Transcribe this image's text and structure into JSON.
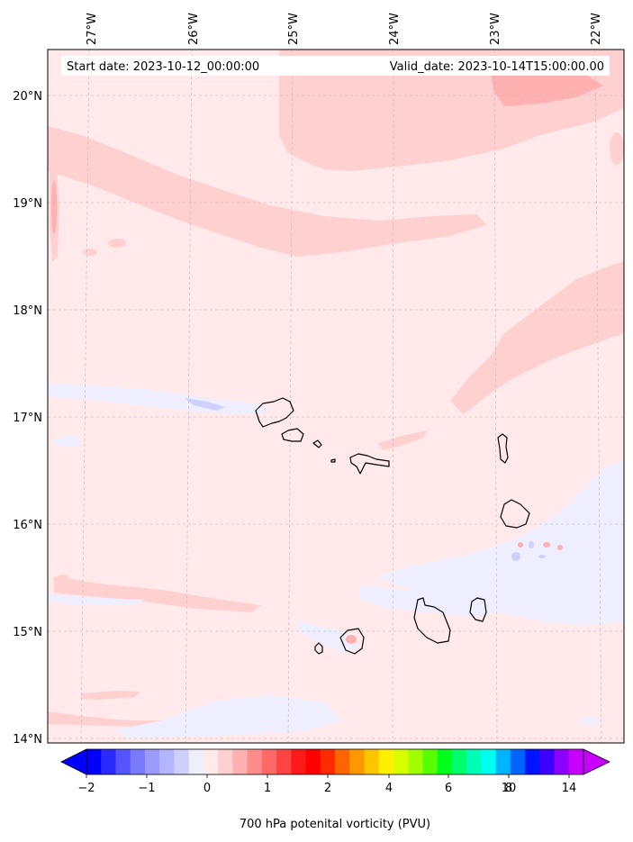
{
  "header": {
    "start_label": "Start date: 2023-10-12_00:00:00",
    "valid_label": "Valid_date: 2023-10-14T15:00:00.00"
  },
  "map": {
    "lon_labels": [
      "27°W",
      "26°W",
      "25°W",
      "24°W",
      "23°W",
      "22°W"
    ],
    "lat_labels": [
      "20°N",
      "19°N",
      "18°N",
      "17°N",
      "16°N",
      "15°N",
      "14°N"
    ],
    "lon_values": [
      -27,
      -26,
      -25,
      -24,
      -23,
      -22
    ],
    "lat_values": [
      20,
      19,
      18,
      17,
      16,
      15,
      14
    ],
    "lon_range": [
      -27.4,
      -21.9
    ],
    "lat_range": [
      13.95,
      20.42
    ],
    "background_color": "#ffe9ea",
    "land_outline_color": "#000000",
    "gridlines": true
  },
  "colorbar": {
    "label": "700 hPa potenital vorticity (PVU)",
    "tick_labels": [
      "−2",
      "−1",
      "0",
      "1",
      "2",
      "4",
      "6",
      "8",
      "10",
      "14"
    ],
    "colors": [
      "#0000ff",
      "#2a2aff",
      "#5555ff",
      "#7a7aff",
      "#9a9aff",
      "#b4b4ff",
      "#d0d0ff",
      "#eeeeff",
      "#ffeaea",
      "#ffd0d0",
      "#ffb0b0",
      "#ff8c8c",
      "#ff6868",
      "#ff4444",
      "#ff1a1a",
      "#ff0000",
      "#ff2a00",
      "#ff6400",
      "#ff9800",
      "#ffc400",
      "#fff000",
      "#d8ff00",
      "#a0ff00",
      "#58ff00",
      "#00ff1a",
      "#00ff6a",
      "#00ffb4",
      "#00ffee",
      "#00b4ff",
      "#0064ff",
      "#0014ff",
      "#3c00ff",
      "#8c00ff",
      "#c800ff"
    ],
    "extend": "both"
  }
}
